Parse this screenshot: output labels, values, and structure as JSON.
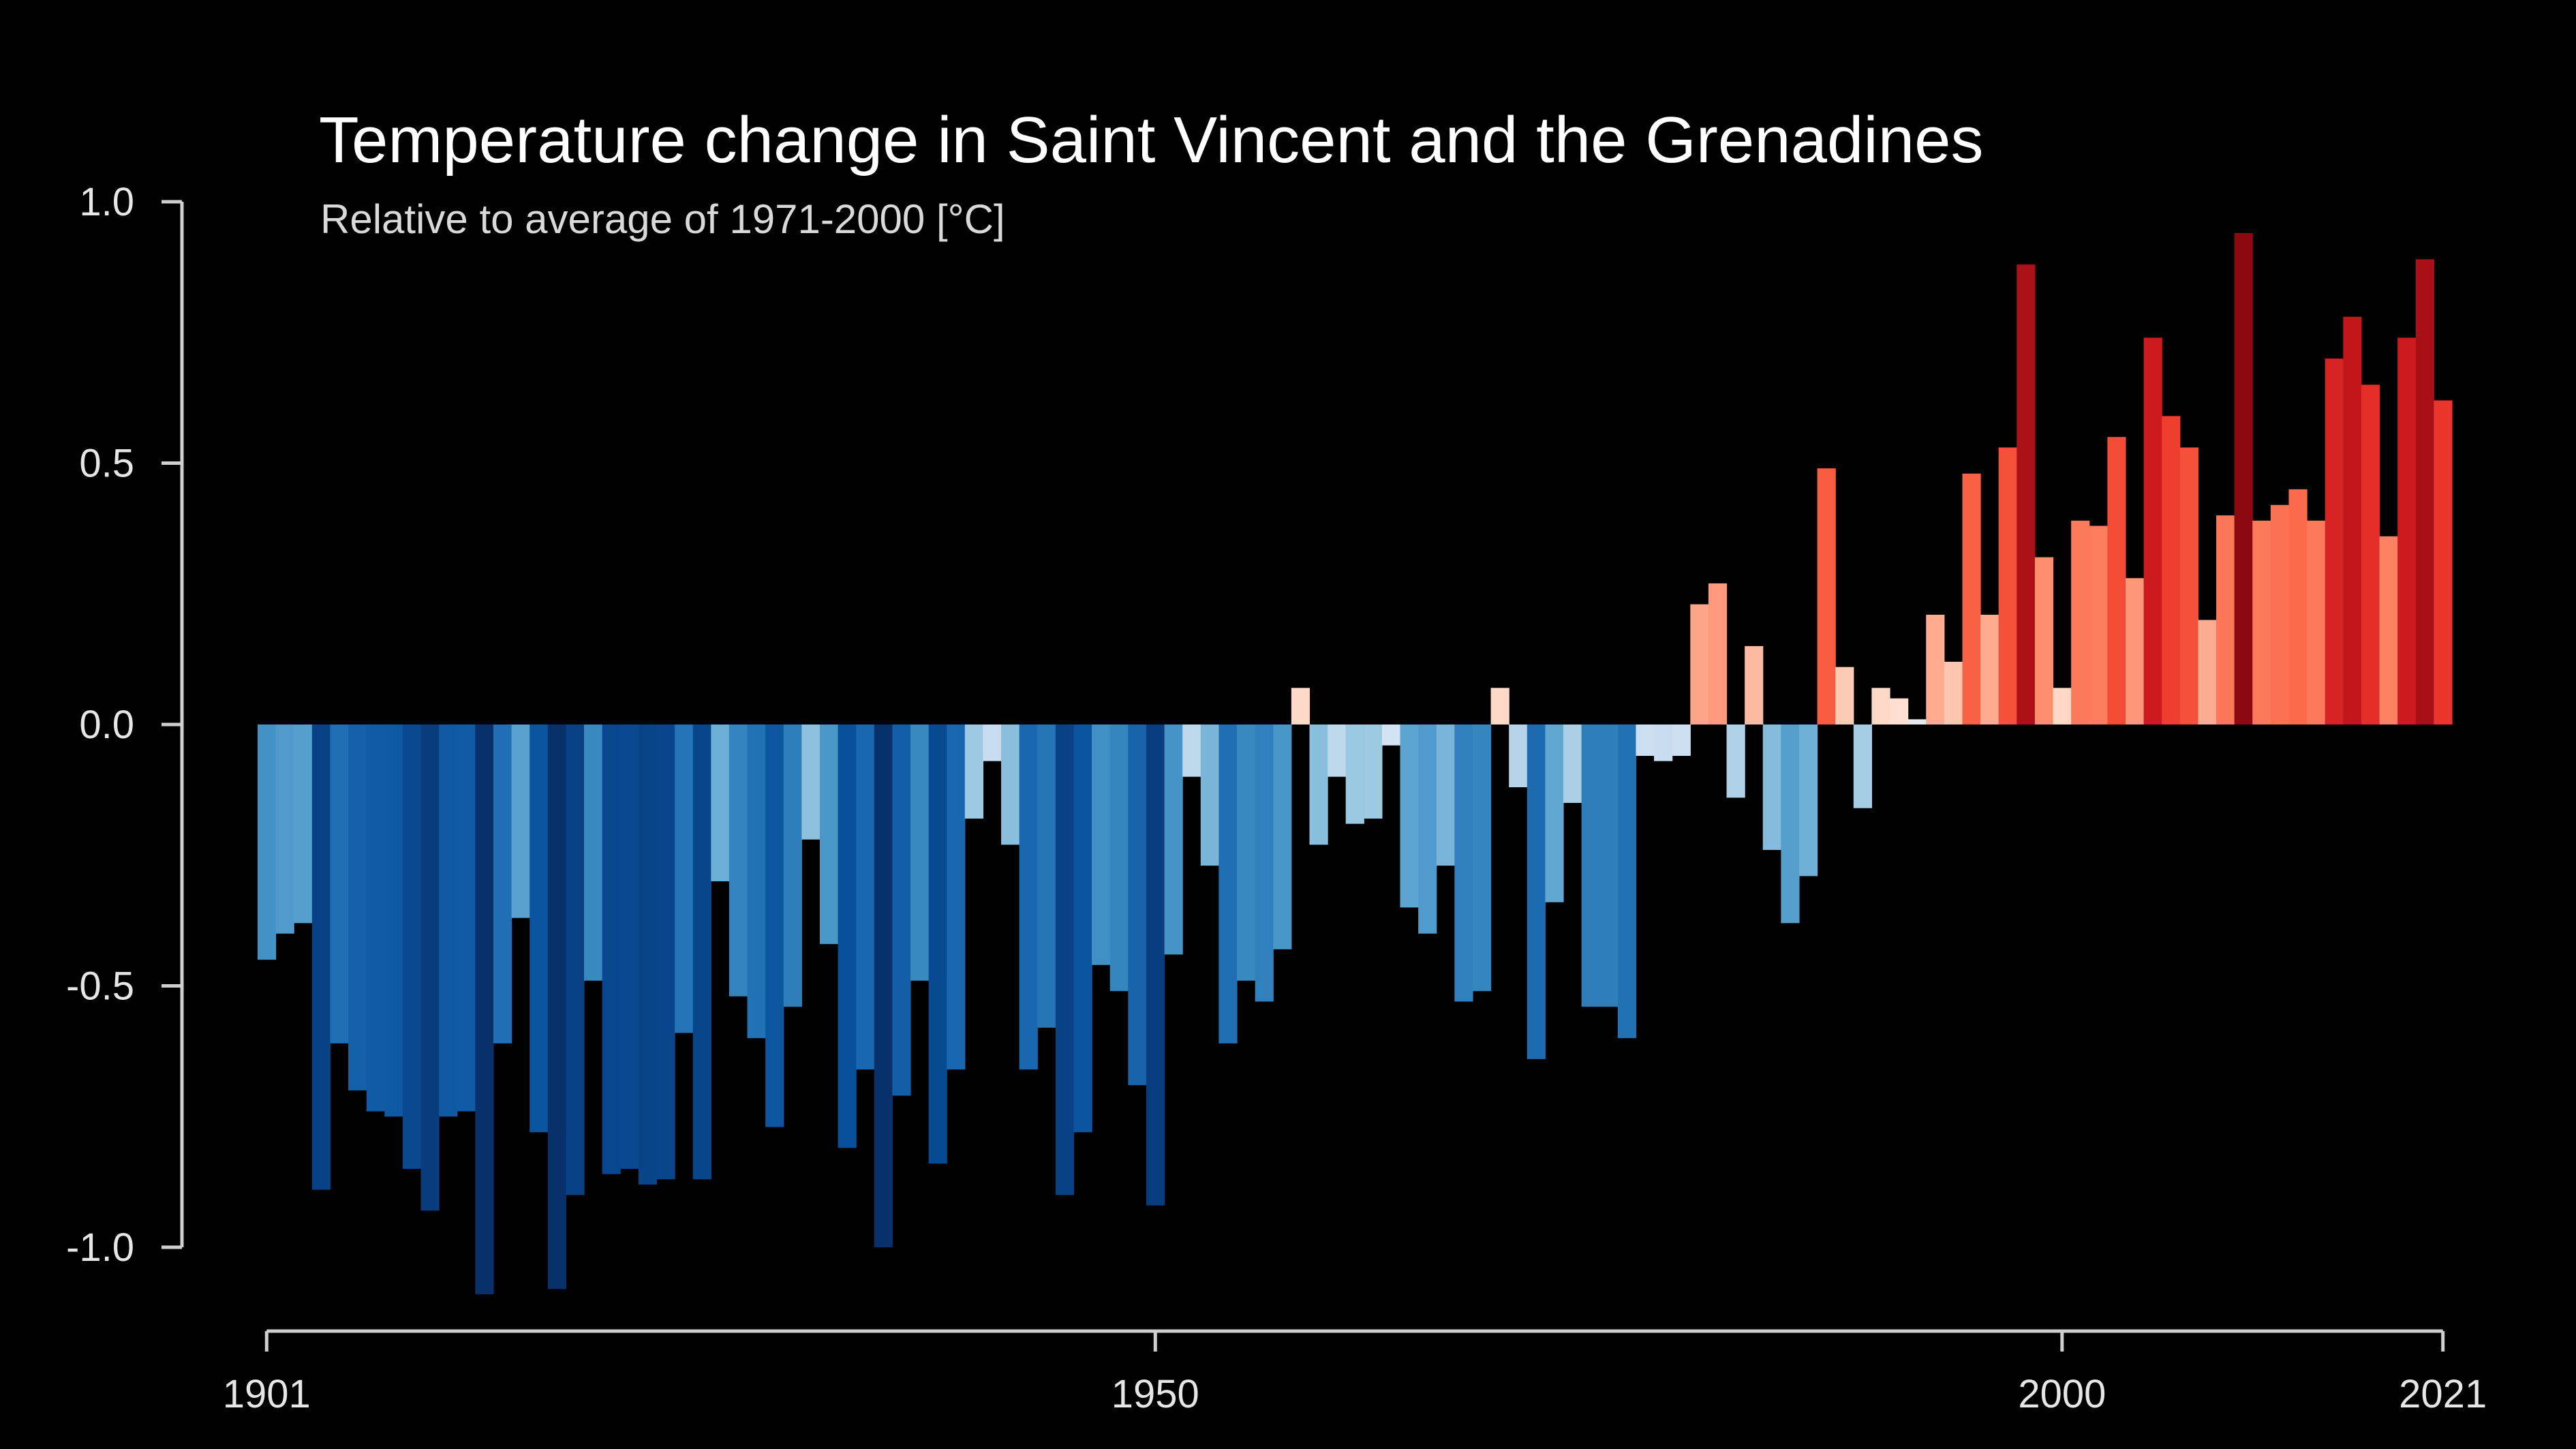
{
  "chart_data": {
    "type": "bar",
    "title": "Temperature change in Saint Vincent and the Grenadines",
    "subtitle": "Relative to average of 1971-2000  [°C]",
    "xlabel": "",
    "ylabel": "",
    "ylim": [
      -1.0,
      1.0
    ],
    "y_ticks": [
      "1.0",
      "0.5",
      "0.0",
      "-0.5",
      "-1.0"
    ],
    "x_ticks": [
      "1901",
      "1950",
      "2000",
      "2021"
    ],
    "x_range": [
      1901,
      2021
    ],
    "grid": false,
    "legend": "none",
    "colors": {
      "background": "#000000",
      "axis": "#cfcfcf",
      "text": "#ffffff"
    },
    "series": [
      {
        "x": [
          1901,
          1902,
          1903,
          1904,
          1905,
          1906,
          1907,
          1908,
          1909,
          1910,
          1911,
          1912,
          1913,
          1914,
          1915,
          1916,
          1917,
          1918,
          1919,
          1920,
          1921,
          1922,
          1923,
          1924,
          1925,
          1926,
          1927,
          1928,
          1929,
          1930,
          1931,
          1932,
          1933,
          1934,
          1935,
          1936,
          1937,
          1938,
          1939,
          1940,
          1941,
          1942,
          1943,
          1944,
          1945,
          1946,
          1947,
          1948,
          1949,
          1950,
          1951,
          1952,
          1953,
          1954,
          1955,
          1956,
          1957,
          1958,
          1959,
          1960,
          1961,
          1962,
          1963,
          1964,
          1965,
          1966,
          1967,
          1968,
          1969,
          1970,
          1971,
          1972,
          1973,
          1974,
          1975,
          1976,
          1977,
          1978,
          1979,
          1980,
          1981,
          1982,
          1983,
          1984,
          1985,
          1986,
          1987,
          1988,
          1989,
          1990,
          1991,
          1992,
          1993,
          1994,
          1995,
          1996,
          1997,
          1998,
          1999,
          2000,
          2001,
          2002,
          2003,
          2004,
          2005,
          2006,
          2007,
          2008,
          2009,
          2010,
          2011,
          2012,
          2013,
          2014,
          2015,
          2016,
          2017,
          2018,
          2019,
          2020,
          2021
        ],
        "values": [
          -0.45,
          -0.4,
          -0.38,
          -0.89,
          -0.61,
          -0.7,
          -0.74,
          -0.75,
          -0.85,
          -0.93,
          -0.75,
          -0.74,
          -1.09,
          -0.61,
          -0.37,
          -0.78,
          -1.08,
          -0.9,
          -0.49,
          -0.86,
          -0.85,
          -0.88,
          -0.87,
          -0.59,
          -0.87,
          -0.3,
          -0.52,
          -0.6,
          -0.77,
          -0.54,
          -0.22,
          -0.42,
          -0.81,
          -0.66,
          -1.0,
          -0.71,
          -0.49,
          -0.84,
          -0.66,
          -0.18,
          -0.07,
          -0.23,
          -0.66,
          -0.58,
          -0.9,
          -0.78,
          -0.46,
          -0.51,
          -0.69,
          -0.92,
          -0.44,
          -0.1,
          -0.27,
          -0.61,
          -0.49,
          -0.53,
          -0.43,
          0.07,
          -0.23,
          -0.1,
          -0.19,
          -0.18,
          -0.04,
          -0.35,
          -0.4,
          -0.27,
          -0.53,
          -0.51,
          0.07,
          -0.12,
          -0.64,
          -0.34,
          -0.15,
          -0.54,
          -0.54,
          -0.6,
          -0.06,
          -0.07,
          -0.06,
          0.23,
          0.27,
          -0.14,
          0.15,
          -0.24,
          -0.38,
          -0.29,
          0.49,
          0.11,
          -0.16,
          0.07,
          0.05,
          0.01,
          0.21,
          0.12,
          0.48,
          0.21,
          0.53,
          0.88,
          0.32,
          0.07,
          0.39,
          0.38,
          0.55,
          0.28,
          0.74,
          0.59,
          0.53,
          0.2,
          0.4,
          0.94,
          0.39,
          0.42,
          0.45,
          0.39,
          0.7,
          0.78,
          0.65,
          0.36,
          0.74,
          0.89,
          0.62
        ]
      }
    ]
  }
}
